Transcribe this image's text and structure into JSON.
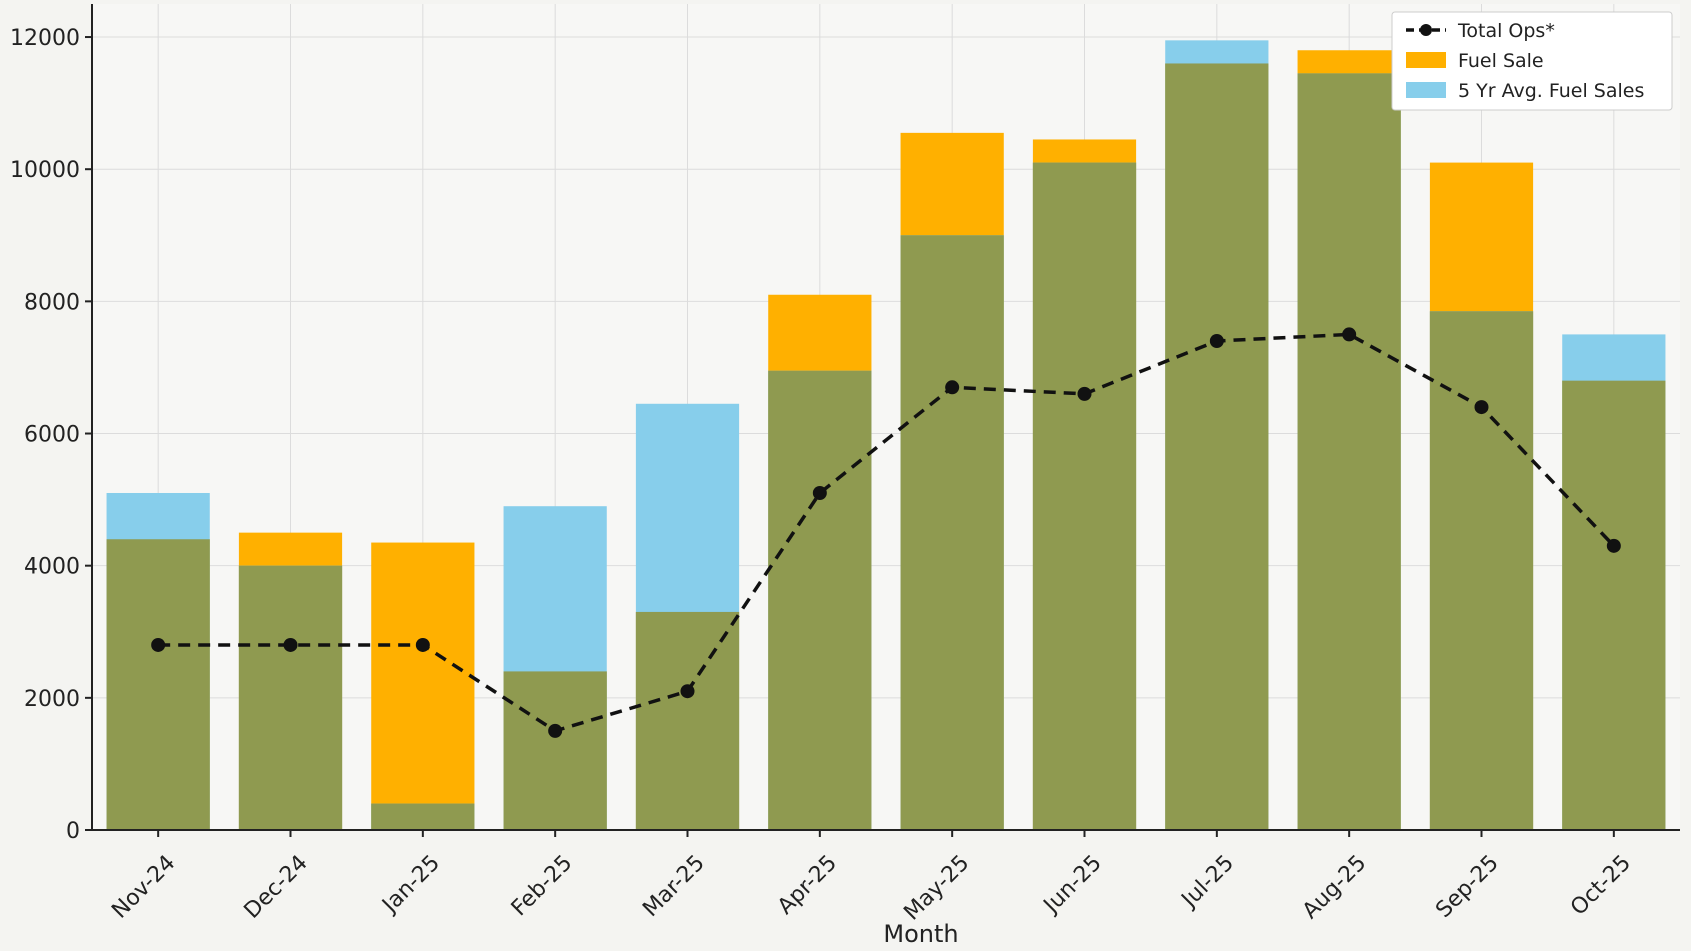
{
  "chart_data": {
    "type": "bar",
    "title": "",
    "xlabel": "Month",
    "ylabel": "",
    "categories": [
      "Nov-24",
      "Dec-24",
      "Jan-25",
      "Feb-25",
      "Mar-25",
      "Apr-25",
      "May-25",
      "Jun-25",
      "Jul-25",
      "Aug-25",
      "Sep-25",
      "Oct-25"
    ],
    "ylim": [
      0,
      12500
    ],
    "yticks": [
      0,
      2000,
      4000,
      6000,
      8000,
      10000,
      12000
    ],
    "grid": true,
    "legend_position": "top-right",
    "series": [
      {
        "name": "Fuel Sale",
        "kind": "bar",
        "color": "#ffb000",
        "values": [
          4400,
          4500,
          4350,
          2400,
          3300,
          8100,
          10550,
          10450,
          11600,
          11800,
          10100,
          6800
        ]
      },
      {
        "name": "5 Yr Avg. Fuel Sales",
        "kind": "bar",
        "color": "#87ceeb",
        "values": [
          5100,
          4000,
          400,
          4900,
          6450,
          6950,
          9000,
          10100,
          11950,
          11450,
          7850,
          7500
        ]
      },
      {
        "name": "Total Ops*",
        "kind": "line",
        "color": "#111111",
        "style": "dashed",
        "marker": "circle",
        "values": [
          2800,
          2800,
          2800,
          1500,
          2100,
          5100,
          6700,
          6600,
          7400,
          7500,
          6400,
          4300
        ]
      }
    ],
    "overlap_color": "#8f9a50"
  }
}
